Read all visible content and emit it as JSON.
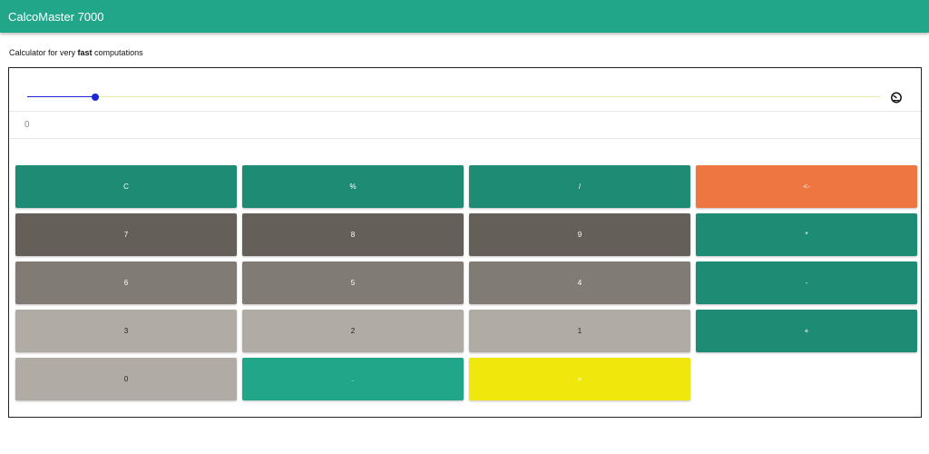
{
  "app": {
    "title": "CalcoMaster 7000"
  },
  "subtitle": {
    "prefix": "Calculator for very ",
    "emphasis": "fast",
    "suffix": " computations"
  },
  "speed": {
    "value_fraction": 0.08,
    "icon": "speedometer-icon"
  },
  "display": {
    "value": "0"
  },
  "colors": {
    "topbar": "#21a689",
    "operator": "#1e8c74",
    "backspace": "#ee7640",
    "digits_dark": "#645f58",
    "digits_mid": "#807b74",
    "digits_light": "#b0aba5",
    "decimal": "#21a689",
    "equals": "#f0e80d",
    "slider": "#1d27d8"
  },
  "keys": {
    "clear": "C",
    "percent": "%",
    "divide": "/",
    "backspace": "<-",
    "seven": "7",
    "eight": "8",
    "nine": "9",
    "multiply": "*",
    "six": "6",
    "five": "5",
    "four": "4",
    "subtract": "-",
    "three": "3",
    "two": "2",
    "one": "1",
    "add": "+",
    "zero": "0",
    "decimal": ".",
    "equals": "="
  }
}
